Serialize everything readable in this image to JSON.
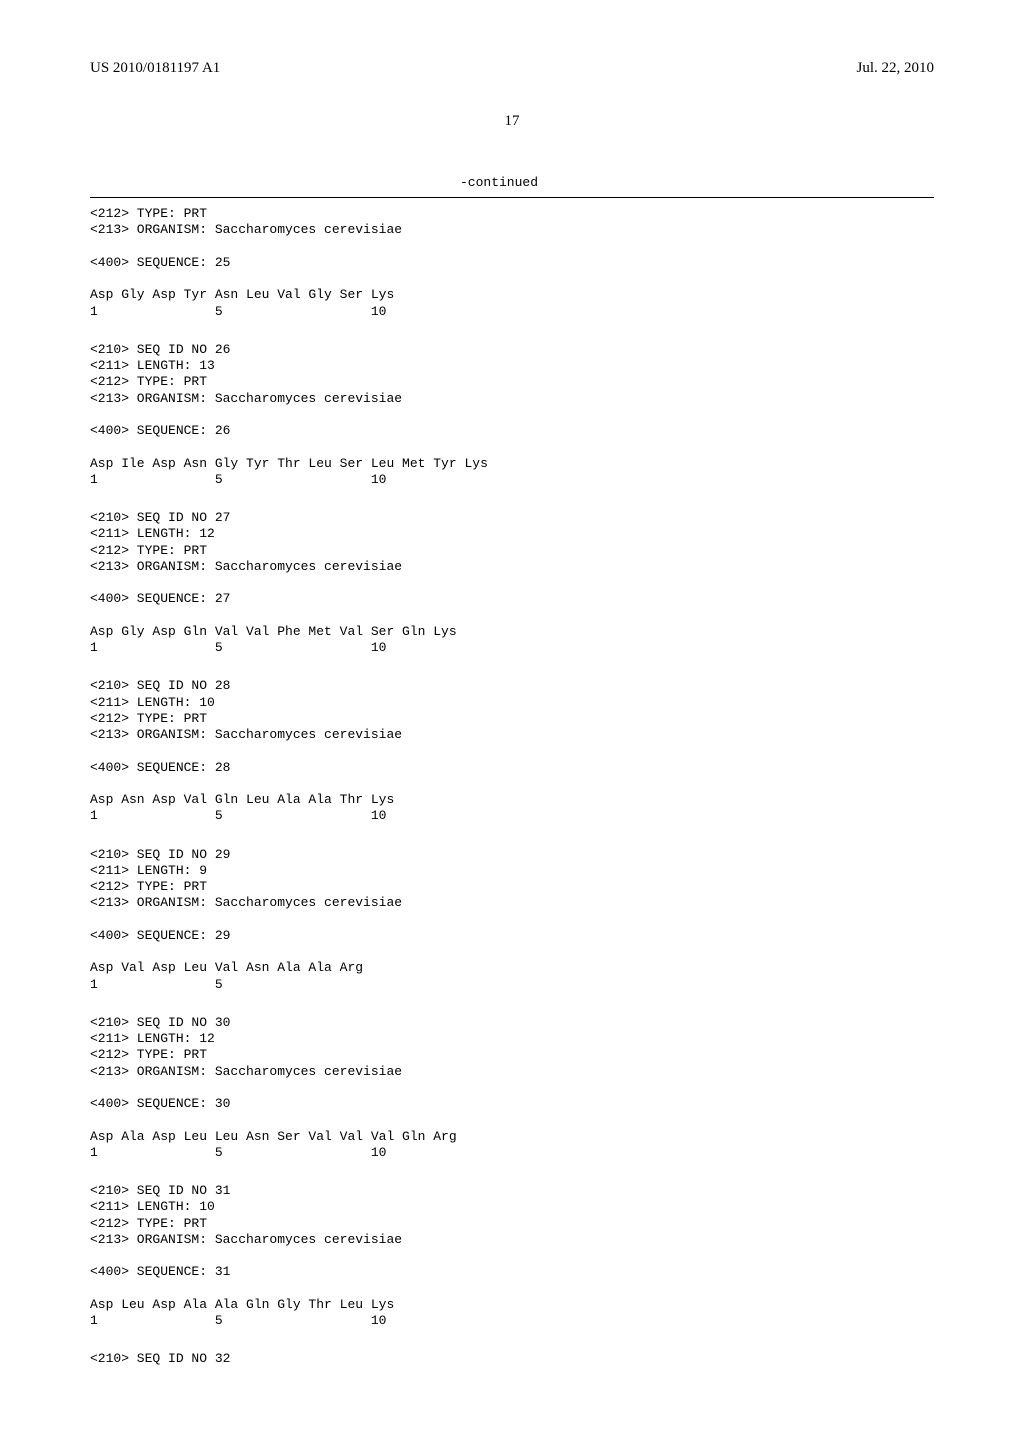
{
  "header": {
    "left": "US 2010/0181197 A1",
    "right": "Jul. 22, 2010",
    "page_number": "17"
  },
  "continued_label": "-continued",
  "org": "Saccharomyces cerevisiae",
  "sections": [
    {
      "lines": [
        "<212> TYPE: PRT",
        "<213> ORGANISM: Saccharomyces cerevisiae",
        "",
        "<400> SEQUENCE: 25",
        "",
        "Asp Gly Asp Tyr Asn Leu Val Gly Ser Lys",
        "1               5                   10"
      ]
    },
    {
      "lines": [
        "<210> SEQ ID NO 26",
        "<211> LENGTH: 13",
        "<212> TYPE: PRT",
        "<213> ORGANISM: Saccharomyces cerevisiae",
        "",
        "<400> SEQUENCE: 26",
        "",
        "Asp Ile Asp Asn Gly Tyr Thr Leu Ser Leu Met Tyr Lys",
        "1               5                   10"
      ]
    },
    {
      "lines": [
        "<210> SEQ ID NO 27",
        "<211> LENGTH: 12",
        "<212> TYPE: PRT",
        "<213> ORGANISM: Saccharomyces cerevisiae",
        "",
        "<400> SEQUENCE: 27",
        "",
        "Asp Gly Asp Gln Val Val Phe Met Val Ser Gln Lys",
        "1               5                   10"
      ]
    },
    {
      "lines": [
        "<210> SEQ ID NO 28",
        "<211> LENGTH: 10",
        "<212> TYPE: PRT",
        "<213> ORGANISM: Saccharomyces cerevisiae",
        "",
        "<400> SEQUENCE: 28",
        "",
        "Asp Asn Asp Val Gln Leu Ala Ala Thr Lys",
        "1               5                   10"
      ]
    },
    {
      "lines": [
        "<210> SEQ ID NO 29",
        "<211> LENGTH: 9",
        "<212> TYPE: PRT",
        "<213> ORGANISM: Saccharomyces cerevisiae",
        "",
        "<400> SEQUENCE: 29",
        "",
        "Asp Val Asp Leu Val Asn Ala Ala Arg",
        "1               5"
      ]
    },
    {
      "lines": [
        "<210> SEQ ID NO 30",
        "<211> LENGTH: 12",
        "<212> TYPE: PRT",
        "<213> ORGANISM: Saccharomyces cerevisiae",
        "",
        "<400> SEQUENCE: 30",
        "",
        "Asp Ala Asp Leu Leu Asn Ser Val Val Val Gln Arg",
        "1               5                   10"
      ]
    },
    {
      "lines": [
        "<210> SEQ ID NO 31",
        "<211> LENGTH: 10",
        "<212> TYPE: PRT",
        "<213> ORGANISM: Saccharomyces cerevisiae",
        "",
        "<400> SEQUENCE: 31",
        "",
        "Asp Leu Asp Ala Ala Gln Gly Thr Leu Lys",
        "1               5                   10"
      ]
    },
    {
      "lines": [
        "<210> SEQ ID NO 32"
      ]
    }
  ]
}
